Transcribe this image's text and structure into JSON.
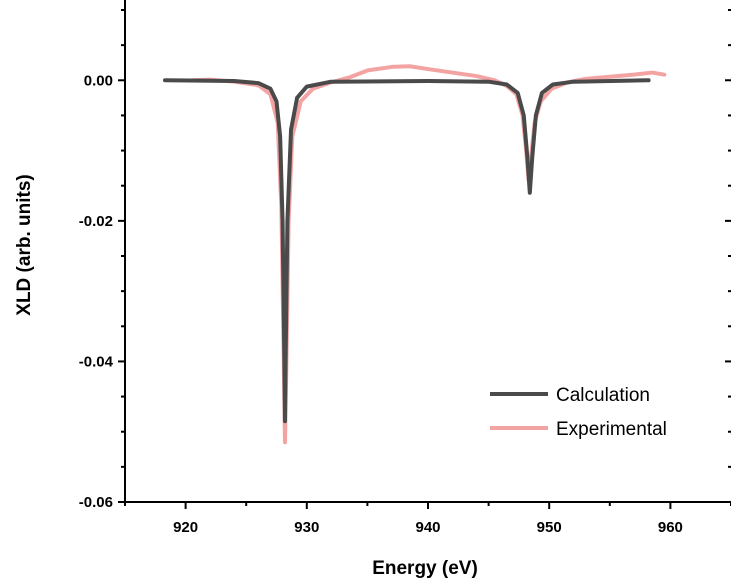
{
  "chart_data": {
    "type": "line",
    "title": "",
    "xlabel": "Energy (eV)",
    "ylabel": "XLD (arb. units)",
    "xlim": [
      915,
      965
    ],
    "ylim": [
      -0.06,
      0.01
    ],
    "x_ticks": [
      920,
      930,
      940,
      950,
      960
    ],
    "x_tick_labels": [
      "920",
      "930",
      "940",
      "950",
      "960"
    ],
    "y_ticks": [
      0.0,
      -0.02,
      -0.04,
      -0.06
    ],
    "y_tick_labels": [
      "0.00",
      "-0.02",
      "-0.04",
      "-0.06"
    ],
    "grid": false,
    "legend_position": "bottom-right",
    "series": [
      {
        "name": "Calculation",
        "color": "#4a4a4a",
        "points": [
          [
            918.3,
            0.0
          ],
          [
            924.0,
            -0.0001
          ],
          [
            926.0,
            -0.0004
          ],
          [
            927.0,
            -0.0012
          ],
          [
            927.5,
            -0.003
          ],
          [
            927.8,
            -0.008
          ],
          [
            928.0,
            -0.02
          ],
          [
            928.15,
            -0.04
          ],
          [
            928.2,
            -0.0485
          ],
          [
            928.25,
            -0.04
          ],
          [
            928.4,
            -0.02
          ],
          [
            928.7,
            -0.007
          ],
          [
            929.2,
            -0.0025
          ],
          [
            930.0,
            -0.0009
          ],
          [
            932.0,
            -0.0002
          ],
          [
            940.0,
            -0.0001
          ],
          [
            945.0,
            -0.0002
          ],
          [
            946.5,
            -0.0006
          ],
          [
            947.4,
            -0.0018
          ],
          [
            947.9,
            -0.005
          ],
          [
            948.2,
            -0.011
          ],
          [
            948.4,
            -0.016
          ],
          [
            948.6,
            -0.011
          ],
          [
            948.9,
            -0.005
          ],
          [
            949.4,
            -0.0018
          ],
          [
            950.3,
            -0.0006
          ],
          [
            952.0,
            -0.0002
          ],
          [
            958.2,
            0.0
          ]
        ]
      },
      {
        "name": "Experimental",
        "color": "#f4a3a3",
        "points": [
          [
            920.6,
            0.0
          ],
          [
            922.0,
            0.0001
          ],
          [
            924.0,
            -0.0002
          ],
          [
            926.0,
            -0.0007
          ],
          [
            927.0,
            -0.002
          ],
          [
            927.6,
            -0.006
          ],
          [
            927.9,
            -0.018
          ],
          [
            928.1,
            -0.04
          ],
          [
            928.2,
            -0.0515
          ],
          [
            928.3,
            -0.042
          ],
          [
            928.5,
            -0.02
          ],
          [
            928.8,
            -0.008
          ],
          [
            929.5,
            -0.003
          ],
          [
            930.5,
            -0.0012
          ],
          [
            932.0,
            -0.0003
          ],
          [
            933.5,
            0.0004
          ],
          [
            935.0,
            0.0014
          ],
          [
            937.0,
            0.0019
          ],
          [
            938.5,
            0.002
          ],
          [
            940.0,
            0.0016
          ],
          [
            942.0,
            0.0011
          ],
          [
            944.0,
            0.0006
          ],
          [
            945.5,
            0.0
          ],
          [
            946.5,
            -0.0008
          ],
          [
            947.3,
            -0.002
          ],
          [
            947.8,
            -0.005
          ],
          [
            948.1,
            -0.01
          ],
          [
            948.3,
            -0.0142
          ],
          [
            948.5,
            -0.011
          ],
          [
            948.8,
            -0.006
          ],
          [
            949.3,
            -0.003
          ],
          [
            950.2,
            -0.0012
          ],
          [
            951.5,
            -0.0003
          ],
          [
            953.0,
            0.0002
          ],
          [
            955.0,
            0.0005
          ],
          [
            957.0,
            0.0008
          ],
          [
            958.5,
            0.0011
          ],
          [
            959.5,
            0.0008
          ]
        ]
      }
    ]
  }
}
